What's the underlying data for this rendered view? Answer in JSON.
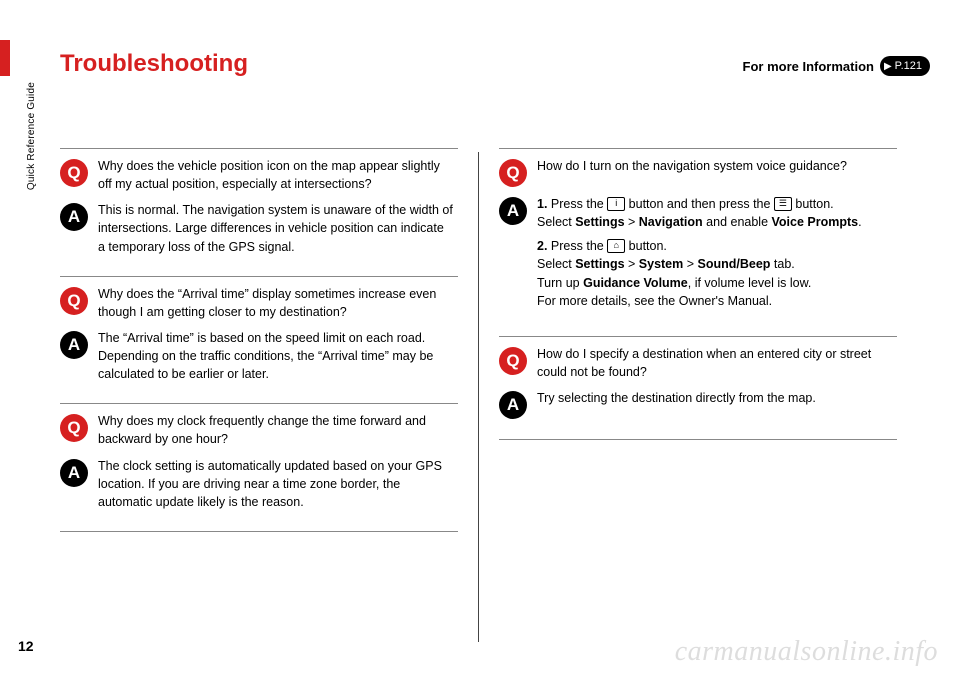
{
  "sideLabel": "Quick Reference Guide",
  "title": "Troubleshooting",
  "infoRef": {
    "label": "For more Information",
    "page": "P.121"
  },
  "pageNumber": "12",
  "watermark": "carmanualsonline.info",
  "left": [
    {
      "q": "Why does the vehicle position icon on the map appear slightly off my actual position, especially at intersections?",
      "a": "This is normal. The navigation system is unaware of the width of intersections. Large differences in vehicle position can indicate a temporary loss of the GPS signal."
    },
    {
      "q": "Why does the “Arrival time” display sometimes increase even though I am getting closer to my destination?",
      "a": "The “Arrival time” is based on the speed limit on each road. Depending on the traffic conditions, the “Arrival time” may be calculated to be earlier or later."
    },
    {
      "q": "Why does my clock frequently change the time forward and backward by one hour?",
      "a": "The clock setting is automatically updated based on your GPS location. If you are driving near a time zone border, the automatic update likely is the reason."
    }
  ],
  "right": [
    {
      "q": "How do I turn on the navigation system voice guidance?",
      "aSteps": [
        {
          "num": "1.",
          "pre": "Press the ",
          "icon1": "ⓘ",
          "mid": " button and then press the ",
          "icon2": "☰",
          "post": " button.",
          "line2a": "Select ",
          "b1": "Settings",
          "gt1": " > ",
          "b2": "Navigation",
          "line2b": " and enable ",
          "b3": "Voice Prompts",
          "line2c": "."
        },
        {
          "num": "2.",
          "pre": "Press the ",
          "icon1": "⌂",
          "post": " button.",
          "line2a": "Select ",
          "b1": "Settings",
          "gt1": " > ",
          "b2": "System",
          "gt2": " > ",
          "b3": "Sound/Beep",
          "line2b": " tab.",
          "line3a": "Turn up ",
          "b4": "Guidance Volume",
          "line3b": ", if volume level is low.",
          "line4": "For more details, see the Owner's Manual."
        }
      ]
    },
    {
      "q": "How do I specify a destination when an entered city or street could not be found?",
      "a": "Try selecting the destination directly from the map."
    }
  ]
}
